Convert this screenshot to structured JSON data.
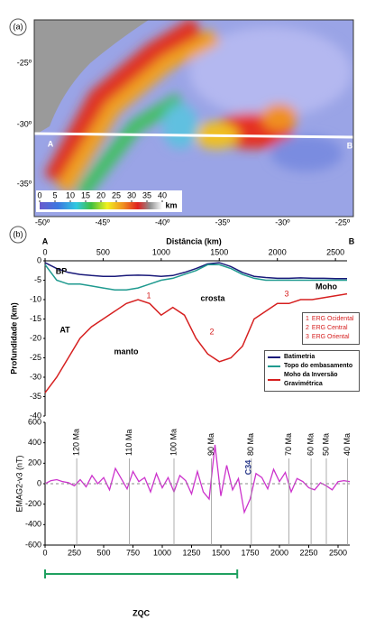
{
  "panel_a": {
    "label": "(a)",
    "point_a": "A",
    "point_b": "B",
    "lat_labels": [
      "-25º",
      "-30º",
      "-35º"
    ],
    "lon_labels": [
      "-50º",
      "-45º",
      "-40º",
      "-35º",
      "-30º",
      "-25º"
    ],
    "colorbar": {
      "ticks": [
        0,
        5,
        10,
        15,
        20,
        25,
        30,
        35,
        40
      ],
      "unit": "km"
    }
  },
  "panel_b": {
    "label": "(b)",
    "point_a": "A",
    "point_b": "B"
  },
  "chart_data": [
    {
      "type": "line",
      "xlabel": "Distância (km)",
      "ylabel": "Profundidade (km)",
      "xlim": [
        0,
        2600
      ],
      "xticks": [
        0,
        500,
        1000,
        1500,
        2000,
        2500
      ],
      "ylim": [
        -40,
        0
      ],
      "yticks": [
        0,
        -5,
        -10,
        -15,
        -20,
        -25,
        -30,
        -35,
        -40
      ],
      "x": [
        0,
        100,
        200,
        300,
        400,
        500,
        600,
        700,
        800,
        900,
        1000,
        1100,
        1200,
        1300,
        1400,
        1500,
        1600,
        1700,
        1800,
        1900,
        2000,
        2100,
        2200,
        2300,
        2400,
        2500,
        2600
      ],
      "series": [
        {
          "name": "Batimetria",
          "color": "#1a1a7a",
          "values": [
            -0.5,
            -2,
            -3,
            -3.5,
            -3.8,
            -4,
            -4,
            -3.8,
            -3.7,
            -3.8,
            -4,
            -3.8,
            -3,
            -2,
            -0.8,
            -0.5,
            -1.5,
            -3,
            -4,
            -4.3,
            -4.5,
            -4.5,
            -4.4,
            -4.5,
            -4.5,
            -4.6,
            -4.6
          ]
        },
        {
          "name": "Topo do embasamento",
          "color": "#1f9a8f",
          "values": [
            -1,
            -5,
            -6,
            -6,
            -6.5,
            -7,
            -7.5,
            -7.5,
            -7,
            -6,
            -5,
            -4.5,
            -3.5,
            -2.5,
            -1,
            -1,
            -2,
            -3.5,
            -4.5,
            -5,
            -5,
            -5,
            -5,
            -5,
            -5,
            -5,
            -5
          ]
        },
        {
          "name": "Moho da Inversão Gravimétrica",
          "color": "#d62020",
          "values": [
            -34,
            -30,
            -25,
            -20,
            -17,
            -15,
            -13,
            -11,
            -10,
            -11,
            -14,
            -12,
            -14,
            -20,
            -24,
            -26,
            -25,
            -22,
            -15,
            -13,
            -11,
            -11,
            -10,
            -10,
            -9.5,
            -9,
            -8.5
          ]
        }
      ],
      "annotations": [
        "BP",
        "AT",
        "crosta",
        "manto",
        "Moho",
        "1",
        "2",
        "3"
      ],
      "regions": [
        {
          "number": "1",
          "name": "ERG Ocidental"
        },
        {
          "number": "2",
          "name": "ERG Central"
        },
        {
          "number": "3",
          "name": "ERG Oriental"
        }
      ]
    },
    {
      "type": "line",
      "ylabel": "EMAG2-v3 (nT)",
      "xlim": [
        0,
        2600
      ],
      "xticks": [
        0,
        250,
        500,
        750,
        1000,
        1250,
        1500,
        1750,
        2000,
        2250,
        2500
      ],
      "ylim": [
        -600,
        600
      ],
      "yticks": [
        600,
        400,
        200,
        0,
        -200,
        -400,
        -600
      ],
      "x": [
        0,
        50,
        100,
        150,
        200,
        250,
        300,
        350,
        400,
        450,
        500,
        550,
        600,
        650,
        700,
        750,
        800,
        850,
        900,
        950,
        1000,
        1050,
        1100,
        1150,
        1200,
        1250,
        1300,
        1350,
        1400,
        1450,
        1500,
        1550,
        1600,
        1650,
        1700,
        1750,
        1800,
        1850,
        1900,
        1950,
        2000,
        2050,
        2100,
        2150,
        2200,
        2250,
        2300,
        2350,
        2400,
        2450,
        2500,
        2550,
        2600
      ],
      "series": [
        {
          "name": "EMAG2-v3",
          "color": "#cc33cc",
          "values": [
            0,
            30,
            40,
            20,
            10,
            -20,
            40,
            -30,
            80,
            0,
            60,
            -60,
            150,
            50,
            -50,
            120,
            20,
            60,
            -80,
            100,
            -40,
            60,
            -80,
            80,
            30,
            -100,
            120,
            -80,
            -150,
            380,
            -120,
            180,
            -60,
            50,
            -280,
            -150,
            100,
            60,
            -50,
            140,
            20,
            110,
            -80,
            50,
            20,
            -40,
            -60,
            10,
            -20,
            -60,
            20,
            30,
            20
          ]
        }
      ],
      "chrons": [
        {
          "label": "120 Ma",
          "x": 270
        },
        {
          "label": "110 Ma",
          "x": 720
        },
        {
          "label": "100 Ma",
          "x": 1100
        },
        {
          "label": "90 Ma",
          "x": 1420
        },
        {
          "label": "80 Ma",
          "x": 1760
        },
        {
          "label": "70 Ma",
          "x": 2080
        },
        {
          "label": "60 Ma",
          "x": 2270
        },
        {
          "label": "50 Ma",
          "x": 2400
        },
        {
          "label": "40 Ma",
          "x": 2580
        }
      ],
      "annotation": "C34",
      "zqc": {
        "label": "ZQC",
        "range": [
          0,
          1640
        ]
      }
    }
  ]
}
